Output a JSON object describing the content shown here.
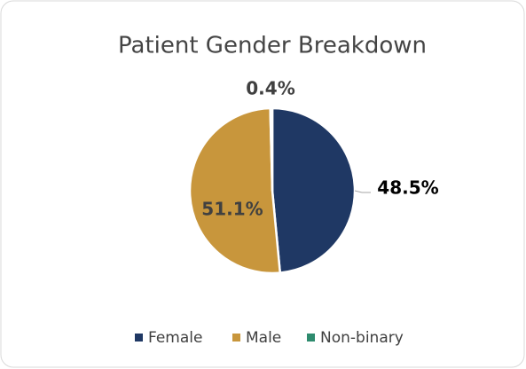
{
  "chart_data": {
    "type": "pie",
    "title": "Patient Gender Breakdown",
    "categories": [
      "Female",
      "Male",
      "Non-binary"
    ],
    "values": [
      48.5,
      51.1,
      0.4
    ],
    "value_labels": [
      "48.5%",
      "51.1%",
      "0.4%"
    ],
    "colors": [
      "#1f3864",
      "#c8963c",
      "#2e8b6e"
    ],
    "legend": "bottom"
  }
}
